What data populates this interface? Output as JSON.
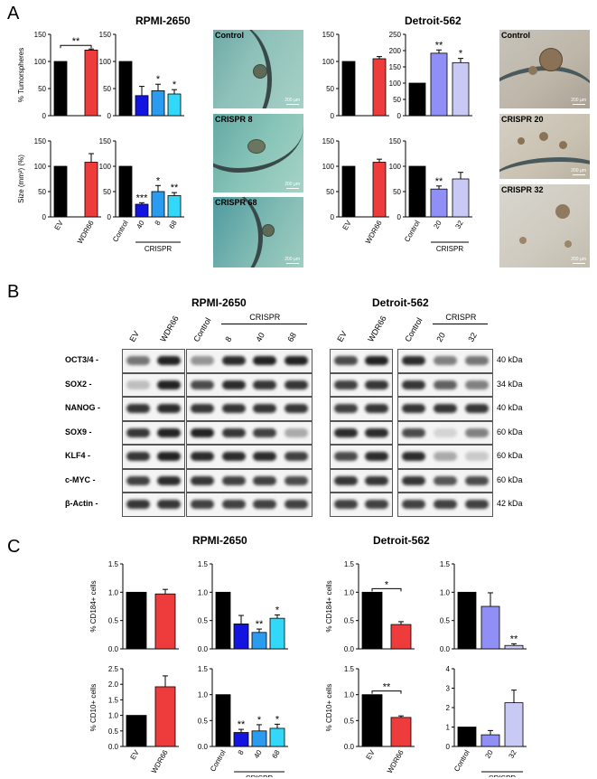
{
  "panels": {
    "a": {
      "letter": "A",
      "title_rpmi": "RPMI-2650",
      "title_detroit": "Detroit-562"
    },
    "b": {
      "letter": "B",
      "title_rpmi": "RPMI-2650",
      "title_detroit": "Detroit-562"
    },
    "c": {
      "letter": "C",
      "title_rpmi": "RPMI-2650",
      "title_detroit": "Detroit-562"
    }
  },
  "colors": {
    "black": "#000000",
    "red": "#ee3b3b",
    "blue": "#1414e0",
    "mid_blue": "#2b9bf0",
    "cyan": "#33d8f8",
    "periwinkle": "#8f8ff5",
    "lavender": "#c9c9f5"
  },
  "photos": {
    "rpmi": [
      {
        "label": "Control",
        "scale": "200 µm"
      },
      {
        "label": "CRISPR 8",
        "scale": "200 µm"
      },
      {
        "label": "CRISPR 68",
        "scale": "200 µm"
      }
    ],
    "detroit": [
      {
        "label": "Control",
        "scale": "200 µm"
      },
      {
        "label": "CRISPR 20",
        "scale": "200 µm"
      },
      {
        "label": "CRISPR 32",
        "scale": "200 µm"
      }
    ]
  },
  "chart_data": [
    {
      "id": "a1",
      "type": "bar",
      "ylabel": "% Tumorspheres",
      "ylim": [
        0,
        150
      ],
      "yticks": [
        0,
        50,
        100,
        150
      ],
      "categories": [
        "EV",
        "WDR66"
      ],
      "values": [
        100,
        121
      ],
      "errors": [
        0,
        2
      ],
      "colors": [
        "black",
        "red"
      ],
      "star_labels": [
        "",
        ""
      ],
      "bracket": {
        "from": 0,
        "to": 1,
        "label": "**"
      }
    },
    {
      "id": "a2",
      "type": "bar",
      "ylabel": "",
      "ylim": [
        0,
        150
      ],
      "yticks": [
        0,
        50,
        100,
        150
      ],
      "categories": [
        "Control",
        "40",
        "8",
        "68"
      ],
      "values": [
        100,
        37,
        46,
        40
      ],
      "errors": [
        0,
        17,
        12,
        8
      ],
      "colors": [
        "black",
        "blue",
        "mid_blue",
        "cyan"
      ],
      "star_labels": [
        "",
        "",
        "*",
        "*"
      ]
    },
    {
      "id": "a3",
      "type": "bar",
      "ylabel": "",
      "ylim": [
        0,
        150
      ],
      "yticks": [
        0,
        50,
        100,
        150
      ],
      "categories": [
        "EV",
        "WDR66"
      ],
      "values": [
        100,
        105
      ],
      "errors": [
        0,
        4
      ],
      "colors": [
        "black",
        "red"
      ],
      "star_labels": [
        "",
        ""
      ]
    },
    {
      "id": "a4",
      "type": "bar",
      "ylabel": "",
      "ylim": [
        0,
        250
      ],
      "yticks": [
        0,
        50,
        100,
        150,
        200,
        250
      ],
      "categories": [
        "Control",
        "20",
        "32"
      ],
      "values": [
        100,
        192,
        163
      ],
      "errors": [
        0,
        10,
        13
      ],
      "colors": [
        "black",
        "periwinkle",
        "lavender"
      ],
      "star_labels": [
        "",
        "**",
        "*"
      ]
    },
    {
      "id": "a5",
      "type": "bar",
      "ylabel": "Size (mm²) (%)",
      "ylim": [
        0,
        150
      ],
      "yticks": [
        0,
        50,
        100,
        150
      ],
      "categories": [
        "EV",
        "WDR66"
      ],
      "values": [
        100,
        108
      ],
      "errors": [
        0,
        17
      ],
      "colors": [
        "black",
        "red"
      ],
      "star_labels": [
        "",
        ""
      ]
    },
    {
      "id": "a6",
      "type": "bar",
      "ylabel": "",
      "ylim": [
        0,
        150
      ],
      "yticks": [
        0,
        50,
        100,
        150
      ],
      "categories": [
        "Control",
        "40",
        "8",
        "68"
      ],
      "values": [
        100,
        25,
        50,
        42
      ],
      "errors": [
        0,
        3,
        12,
        6
      ],
      "colors": [
        "black",
        "blue",
        "mid_blue",
        "cyan"
      ],
      "star_labels": [
        "",
        "***",
        "*",
        "**"
      ],
      "group_label": "CRISPR"
    },
    {
      "id": "a7",
      "type": "bar",
      "ylabel": "",
      "ylim": [
        0,
        150
      ],
      "yticks": [
        0,
        50,
        100,
        150
      ],
      "categories": [
        "EV",
        "WDR66"
      ],
      "values": [
        100,
        108
      ],
      "errors": [
        0,
        6
      ],
      "colors": [
        "black",
        "red"
      ],
      "star_labels": [
        "",
        ""
      ]
    },
    {
      "id": "a8",
      "type": "bar",
      "ylabel": "",
      "ylim": [
        0,
        150
      ],
      "yticks": [
        0,
        50,
        100,
        150
      ],
      "categories": [
        "Control",
        "20",
        "32"
      ],
      "values": [
        100,
        55,
        75
      ],
      "errors": [
        0,
        6,
        13
      ],
      "colors": [
        "black",
        "periwinkle",
        "lavender"
      ],
      "star_labels": [
        "",
        "**",
        ""
      ],
      "group_label": "CRISPR"
    },
    {
      "id": "c1",
      "type": "bar",
      "ylabel": "% CD184+ cells",
      "ylim": [
        0,
        1.5
      ],
      "yticks": [
        "0.0",
        "0.5",
        "1.0",
        "1.5"
      ],
      "categories": [
        "EV",
        "WDR66"
      ],
      "values": [
        1.0,
        0.97
      ],
      "errors": [
        0,
        0.08
      ],
      "colors": [
        "black",
        "red"
      ],
      "star_labels": [
        "",
        ""
      ]
    },
    {
      "id": "c2",
      "type": "bar",
      "ylabel": "",
      "ylim": [
        0,
        1.5
      ],
      "yticks": [
        "0.0",
        "0.5",
        "1.0",
        "1.5"
      ],
      "categories": [
        "Control",
        "8",
        "40",
        "68"
      ],
      "values": [
        1.0,
        0.44,
        0.29,
        0.54
      ],
      "errors": [
        0,
        0.15,
        0.06,
        0.06
      ],
      "colors": [
        "black",
        "blue",
        "mid_blue",
        "cyan"
      ],
      "star_labels": [
        "",
        "",
        "**",
        "*"
      ]
    },
    {
      "id": "c3",
      "type": "bar",
      "ylabel": "% CD184+ cells",
      "ylim": [
        0,
        1.5
      ],
      "yticks": [
        "0.0",
        "0.5",
        "1.0",
        "1.5"
      ],
      "categories": [
        "EV",
        "WDR66"
      ],
      "values": [
        1.0,
        0.43
      ],
      "errors": [
        0,
        0.05
      ],
      "colors": [
        "black",
        "red"
      ],
      "star_labels": [
        "",
        ""
      ],
      "bracket": {
        "from": 0,
        "to": 1,
        "label": "*"
      }
    },
    {
      "id": "c4",
      "type": "bar",
      "ylabel": "",
      "ylim": [
        0,
        1.5
      ],
      "yticks": [
        "0.0",
        "0.5",
        "1.0",
        "1.5"
      ],
      "categories": [
        "Control",
        "20",
        "32"
      ],
      "values": [
        1.0,
        0.75,
        0.06
      ],
      "errors": [
        0,
        0.24,
        0.03
      ],
      "colors": [
        "black",
        "periwinkle",
        "lavender"
      ],
      "star_labels": [
        "",
        "",
        "**"
      ]
    },
    {
      "id": "c5",
      "type": "bar",
      "ylabel": "% CD10+ cells",
      "ylim": [
        0,
        2.5
      ],
      "yticks": [
        "0.0",
        "0.5",
        "1.0",
        "1.5",
        "2.0",
        "2.5"
      ],
      "categories": [
        "EV",
        "WDR66"
      ],
      "values": [
        1.0,
        1.92
      ],
      "errors": [
        0,
        0.35
      ],
      "colors": [
        "black",
        "red"
      ],
      "star_labels": [
        "",
        ""
      ]
    },
    {
      "id": "c6",
      "type": "bar",
      "ylabel": "",
      "ylim": [
        0,
        1.5
      ],
      "yticks": [
        "0.0",
        "0.5",
        "1.0",
        "1.5"
      ],
      "categories": [
        "Control",
        "8",
        "40",
        "68"
      ],
      "values": [
        1.0,
        0.27,
        0.3,
        0.35
      ],
      "errors": [
        0,
        0.06,
        0.12,
        0.08
      ],
      "colors": [
        "black",
        "blue",
        "mid_blue",
        "cyan"
      ],
      "star_labels": [
        "",
        "**",
        "*",
        "*"
      ],
      "group_label": "CRISPR"
    },
    {
      "id": "c7",
      "type": "bar",
      "ylabel": "% CD10+ cells",
      "ylim": [
        0,
        1.5
      ],
      "yticks": [
        "0.0",
        "0.5",
        "1.0",
        "1.5"
      ],
      "categories": [
        "EV",
        "WDR66"
      ],
      "values": [
        1.0,
        0.56
      ],
      "errors": [
        0,
        0.03
      ],
      "colors": [
        "black",
        "red"
      ],
      "star_labels": [
        "",
        ""
      ],
      "bracket": {
        "from": 0,
        "to": 1,
        "label": "**"
      }
    },
    {
      "id": "c8",
      "type": "bar",
      "ylabel": "",
      "ylim": [
        0,
        4
      ],
      "yticks": [
        "0",
        "1",
        "2",
        "3",
        "4"
      ],
      "categories": [
        "Control",
        "20",
        "32"
      ],
      "values": [
        1.0,
        0.6,
        2.25
      ],
      "errors": [
        0,
        0.22,
        0.65
      ],
      "colors": [
        "black",
        "periwinkle",
        "lavender"
      ],
      "star_labels": [
        "",
        "",
        ""
      ],
      "group_label": "CRISPR"
    }
  ],
  "blot": {
    "rows": [
      "OCT3/4 -",
      "SOX2 -",
      "NANOG -",
      "SOX9 -",
      "KLF4 -",
      "c-MYC -",
      "β-Actin -"
    ],
    "kda": [
      "40 kDa",
      "34 kDa",
      "40 kDa",
      "60 kDa",
      "60 kDa",
      "60 kDa",
      "42 kDa"
    ],
    "rpmi_ev_lanes": [
      "EV",
      "WDR66"
    ],
    "rpmi_crispr_lanes": [
      "Control",
      "8",
      "40",
      "68"
    ],
    "detroit_ev_lanes": [
      "EV",
      "WDR66"
    ],
    "detroit_crispr_lanes": [
      "Control",
      "20",
      "32"
    ],
    "group_label": "CRISPR",
    "intensity": {
      "rpmi_ev": [
        [
          0.6,
          1.0
        ],
        [
          0.25,
          1.0
        ],
        [
          0.9,
          0.95
        ],
        [
          0.9,
          1.0
        ],
        [
          0.9,
          1.0
        ],
        [
          0.85,
          0.95
        ],
        [
          0.9,
          0.9
        ]
      ],
      "rpmi_crispr": [
        [
          0.45,
          0.95,
          1.0,
          1.0
        ],
        [
          0.8,
          0.95,
          0.9,
          0.9
        ],
        [
          0.9,
          0.9,
          0.9,
          0.9
        ],
        [
          1.0,
          0.9,
          0.85,
          0.35
        ],
        [
          0.95,
          0.95,
          0.95,
          0.85
        ],
        [
          0.9,
          0.85,
          0.85,
          0.8
        ],
        [
          0.85,
          0.85,
          0.85,
          0.85
        ]
      ],
      "detroit_ev": [
        [
          0.8,
          1.0
        ],
        [
          0.85,
          0.9
        ],
        [
          0.85,
          0.9
        ],
        [
          0.95,
          0.95
        ],
        [
          0.8,
          0.95
        ],
        [
          0.9,
          0.9
        ],
        [
          0.85,
          0.85
        ]
      ],
      "detroit_crispr": [
        [
          0.95,
          0.55,
          0.6
        ],
        [
          0.9,
          0.7,
          0.55
        ],
        [
          0.9,
          0.9,
          0.9
        ],
        [
          0.8,
          0.15,
          0.55
        ],
        [
          0.95,
          0.35,
          0.2
        ],
        [
          0.9,
          0.75,
          0.8
        ],
        [
          0.85,
          0.85,
          0.85
        ]
      ]
    }
  }
}
